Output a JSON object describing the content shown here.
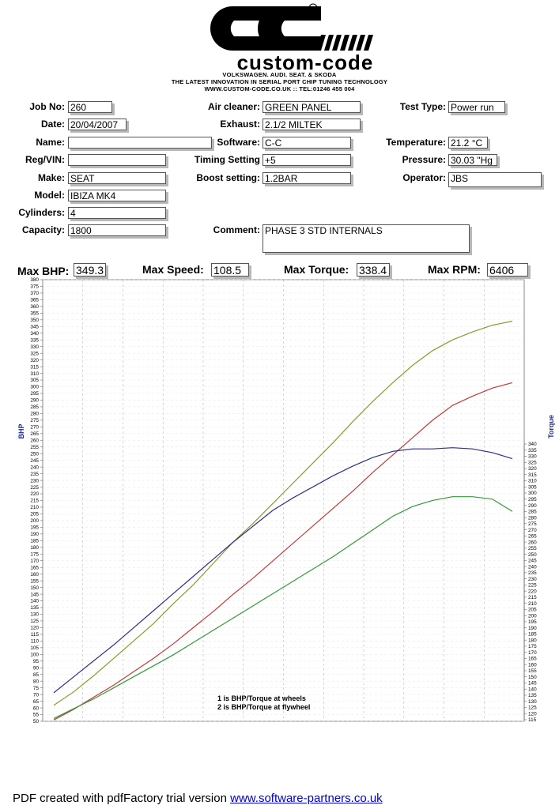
{
  "header": {
    "brand": "custom-code",
    "line1": "VOLKSWAGEN. AUDI. SEAT. & SKODA",
    "line2": "THE LATEST INNOVATION IN SERIAL PORT CHIP TUNING TECHNOLOGY",
    "line3": "WWW.CUSTOM-CODE.CO.UK :: TEL:01246 455 004"
  },
  "form": {
    "job_no_label": "Job No:",
    "job_no": "260",
    "date_label": "Date:",
    "date": "20/04/2007",
    "name_label": "Name:",
    "name": "",
    "regvin_label": "Reg/VIN:",
    "regvin": "",
    "make_label": "Make:",
    "make": "SEAT",
    "model_label": "Model:",
    "model": "IBIZA MK4",
    "cylinders_label": "Cylinders:",
    "cylinders": "4",
    "capacity_label": "Capacity:",
    "capacity": "1800",
    "air_cleaner_label": "Air cleaner:",
    "air_cleaner": "GREEN PANEL",
    "exhaust_label": "Exhaust:",
    "exhaust": "2.1/2 MILTEK",
    "software_label": "Software:",
    "software": "C-C",
    "timing_label": "Timing Setting",
    "timing": "+5",
    "boost_label": "Boost setting:",
    "boost": "1.2BAR",
    "comment_label": "Comment:",
    "comment": "PHASE 3 STD INTERNALS",
    "test_type_label": "Test Type:",
    "test_type": "Power run",
    "temperature_label": "Temperature:",
    "temperature": "21.2",
    "temperature_unit": "°C",
    "pressure_label": "Pressure:",
    "pressure": "30.03",
    "pressure_unit": "\"Hg",
    "operator_label": "Operator:",
    "operator": "JBS"
  },
  "maxima": {
    "bhp_label": "Max BHP:",
    "bhp": "349.3",
    "speed_label": "Max Speed:",
    "speed": "108.5",
    "torque_label": "Max Torque:",
    "torque": "338.4",
    "rpm_label": "Max RPM:",
    "rpm": "6406"
  },
  "chart_data": {
    "type": "line",
    "ylabel": "BHP",
    "y2label": "Torque",
    "ylim": [
      50,
      380
    ],
    "y2lim": [
      115,
      340
    ],
    "grid": true,
    "legend": [
      "1 is BHP/Torque at wheels",
      "2 is BHP/Torque at flywheel"
    ],
    "series": [
      {
        "axis": "left",
        "color": "#8a9a2a",
        "values": [
          62,
          72,
          84,
          97,
          110,
          123,
          138,
          152,
          168,
          184,
          198,
          213,
          228,
          243,
          258,
          274,
          289,
          303,
          316,
          327,
          335,
          341,
          346,
          349
        ]
      },
      {
        "axis": "left",
        "color": "#c23a3a",
        "values": [
          51,
          59,
          68,
          77,
          87,
          97,
          108,
          120,
          132,
          145,
          157,
          170,
          183,
          196,
          209,
          222,
          236,
          249,
          262,
          275,
          286,
          293,
          299,
          303
        ]
      },
      {
        "axis": "right",
        "color": "#2d2f8a",
        "values": [
          137,
          150,
          163,
          176,
          190,
          204,
          218,
          232,
          246,
          260,
          273,
          286,
          296,
          305,
          314,
          322,
          329,
          334,
          336,
          336,
          337,
          336,
          333,
          328
        ]
      },
      {
        "axis": "right",
        "color": "#2f9a3a",
        "values": [
          116,
          124,
          132,
          141,
          150,
          159,
          168,
          178,
          188,
          198,
          208,
          218,
          228,
          238,
          248,
          259,
          270,
          281,
          289,
          294,
          297,
          297,
          295,
          285
        ]
      }
    ]
  },
  "footer": {
    "text": "PDF created with pdfFactory trial version ",
    "link": "www.software-partners.co.uk"
  }
}
